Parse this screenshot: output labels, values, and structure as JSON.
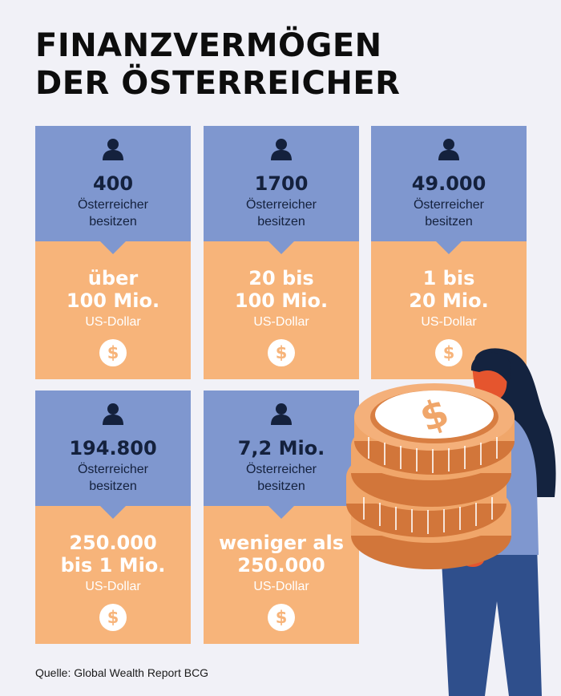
{
  "title": {
    "line1": "FINANZVERMÖGEN",
    "line2": "DER ÖSTERREICHER"
  },
  "icons": {
    "person": "person-icon",
    "dollar": "dollar-coin-icon"
  },
  "colors": {
    "card_top": "#7f97cf",
    "card_bottom": "#f7b47a",
    "text_dark": "#14213d",
    "background": "#f1f1f7"
  },
  "cards": [
    {
      "count": "400",
      "who_line1": "Österreicher",
      "who_line2": "besitzen",
      "amount_line1": "über",
      "amount_line2": "100 Mio.",
      "unit": "US-Dollar",
      "dollar": "$"
    },
    {
      "count": "1700",
      "who_line1": "Österreicher",
      "who_line2": "besitzen",
      "amount_line1": "20 bis",
      "amount_line2": "100 Mio.",
      "unit": "US-Dollar",
      "dollar": "$"
    },
    {
      "count": "49.000",
      "who_line1": "Österreicher",
      "who_line2": "besitzen",
      "amount_line1": "1 bis",
      "amount_line2": "20 Mio.",
      "unit": "US-Dollar",
      "dollar": "$"
    },
    {
      "count": "194.800",
      "who_line1": "Österreicher",
      "who_line2": "besitzen",
      "amount_line1": "250.000",
      "amount_line2": "bis 1 Mio.",
      "unit": "US-Dollar",
      "dollar": "$"
    },
    {
      "count": "7,2 Mio.",
      "who_line1": "Österreicher",
      "who_line2": "besitzen",
      "amount_line1": "weniger als",
      "amount_line2": "250.000",
      "unit": "US-Dollar",
      "dollar": "$"
    }
  ],
  "source": "Quelle: Global Wealth Report BCG"
}
